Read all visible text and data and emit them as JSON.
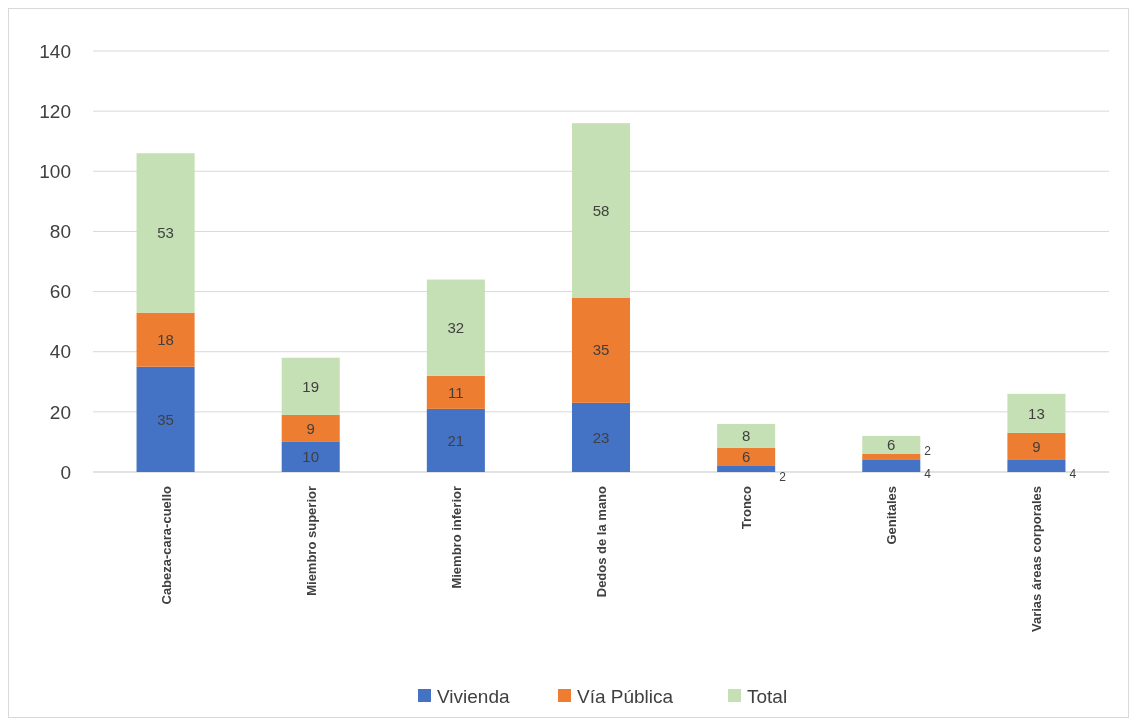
{
  "chart_data": {
    "type": "bar",
    "stacked": true,
    "categories": [
      "Cabeza-cara-cuello",
      "Miembro superior",
      "Miembro inferior",
      "Dedos de la mano",
      "Tronco",
      "Genitales",
      "Varias áreas corporales"
    ],
    "series": [
      {
        "name": "Vivienda",
        "color": "#4472c4",
        "values": [
          35,
          10,
          21,
          23,
          2,
          4,
          4
        ]
      },
      {
        "name": "Vía Pública",
        "color": "#ed7d31",
        "values": [
          18,
          9,
          11,
          35,
          6,
          2,
          9
        ]
      },
      {
        "name": "Total",
        "color": "#c5e0b4",
        "values": [
          53,
          19,
          32,
          58,
          8,
          6,
          13
        ]
      }
    ],
    "ylim": [
      0,
      140
    ],
    "yticks": [
      0,
      20,
      40,
      60,
      80,
      100,
      120,
      140
    ],
    "grid": "y",
    "legend": "bottom",
    "data_labels": true
  }
}
